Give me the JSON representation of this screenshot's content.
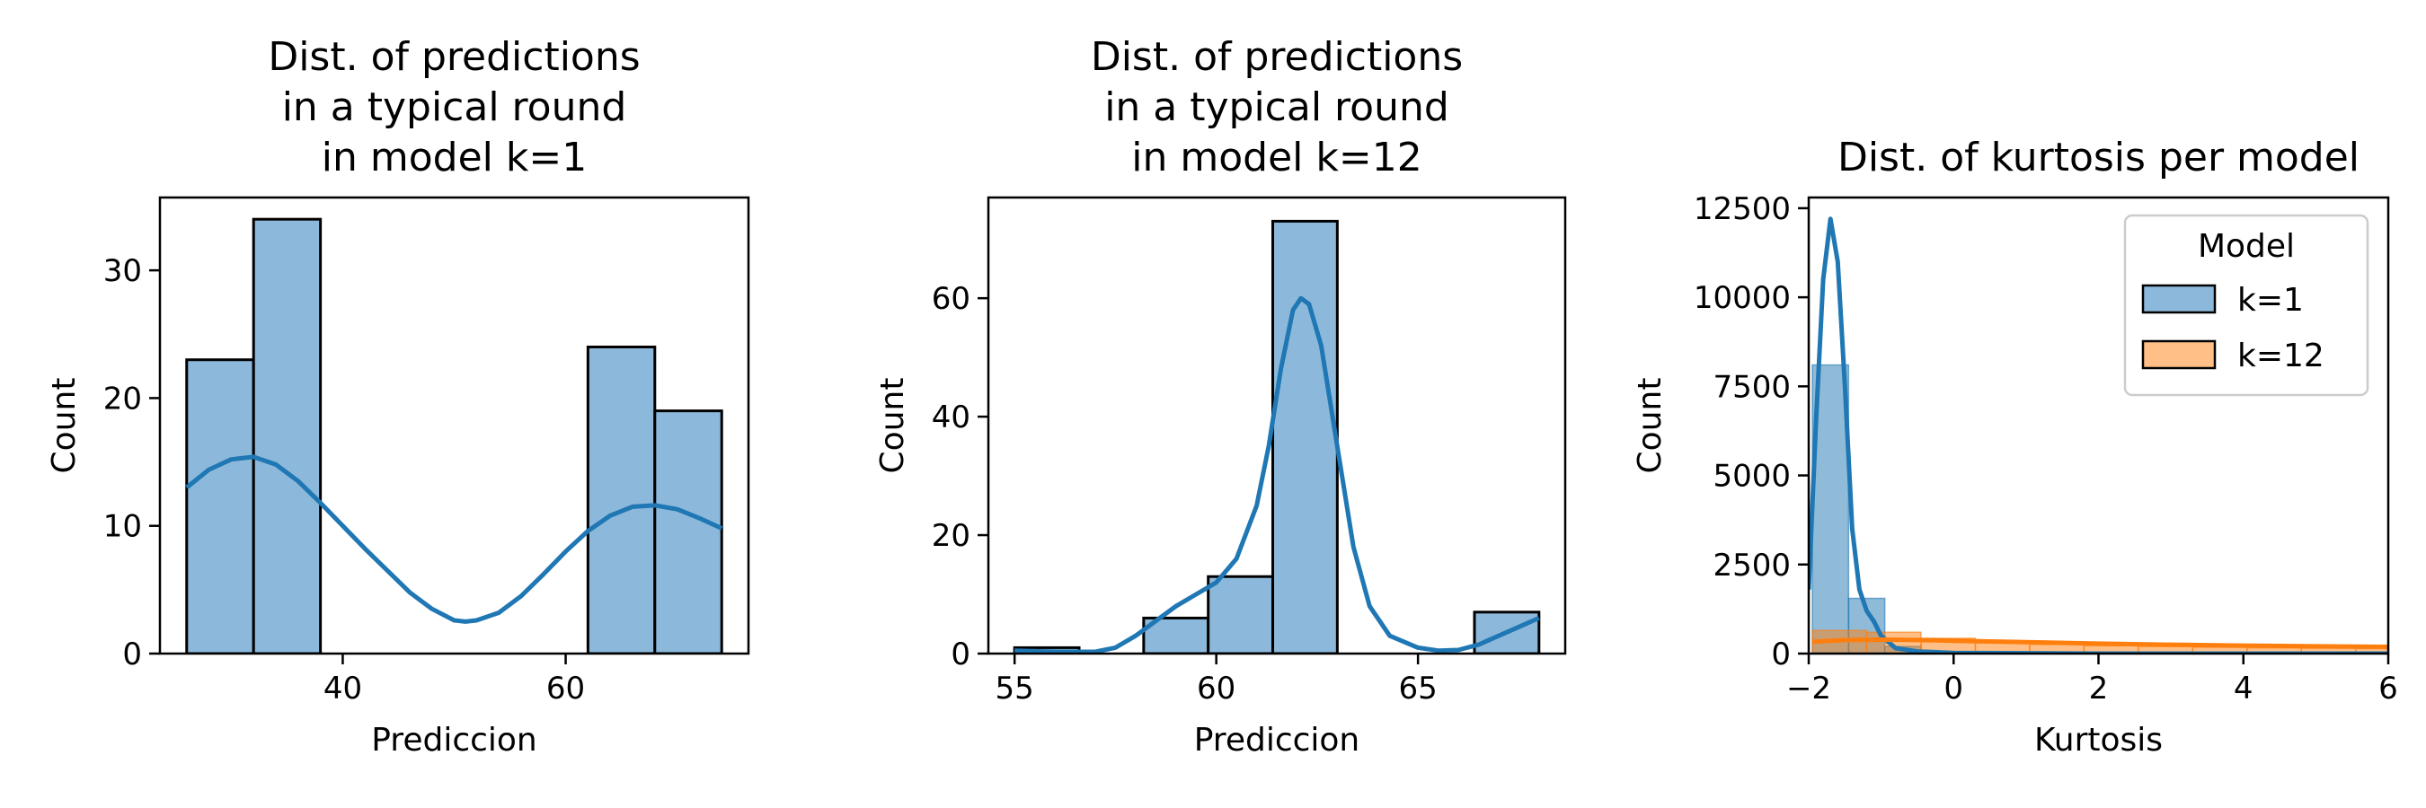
{
  "colors": {
    "blue": "#1f77b4",
    "blue_fill": "#8cb9db",
    "orange": "#ff7f0e",
    "orange_fill": "#ffbf86"
  },
  "chart_data": [
    {
      "type": "bar",
      "title": [
        "Dist. of predictions",
        "in a typical round",
        "in model k=1"
      ],
      "xlabel": "Prediccion",
      "ylabel": "Count",
      "xlim": [
        23.6,
        76.4
      ],
      "ylim": [
        0,
        35.7
      ],
      "xticks": [
        40,
        60
      ],
      "yticks": [
        0,
        10,
        20,
        30
      ],
      "bins": [
        {
          "x0": 26,
          "x1": 32,
          "count": 23
        },
        {
          "x0": 32,
          "x1": 38,
          "count": 34
        },
        {
          "x0": 62,
          "x1": 68,
          "count": 24
        },
        {
          "x0": 68,
          "x1": 74,
          "count": 19
        }
      ],
      "kde": [
        [
          26,
          13.0
        ],
        [
          28,
          14.4
        ],
        [
          30,
          15.2
        ],
        [
          32,
          15.4
        ],
        [
          34,
          14.8
        ],
        [
          36,
          13.5
        ],
        [
          38,
          11.8
        ],
        [
          42,
          8.2
        ],
        [
          46,
          4.8
        ],
        [
          48,
          3.5
        ],
        [
          50,
          2.6
        ],
        [
          51,
          2.5
        ],
        [
          52,
          2.6
        ],
        [
          54,
          3.2
        ],
        [
          56,
          4.5
        ],
        [
          58,
          6.2
        ],
        [
          60,
          8.0
        ],
        [
          62,
          9.6
        ],
        [
          64,
          10.8
        ],
        [
          66,
          11.5
        ],
        [
          68,
          11.6
        ],
        [
          70,
          11.3
        ],
        [
          72,
          10.6
        ],
        [
          74,
          9.8
        ]
      ]
    },
    {
      "type": "bar",
      "title": [
        "Dist. of predictions",
        "in a typical round",
        "in model k=12"
      ],
      "xlabel": "Prediccion",
      "ylabel": "Count",
      "xlim": [
        54.35,
        68.65
      ],
      "ylim": [
        0,
        77
      ],
      "xticks": [
        55,
        60,
        65
      ],
      "yticks": [
        0,
        20,
        40,
        60
      ],
      "bins": [
        {
          "x0": 55.0,
          "x1": 56.6,
          "count": 1
        },
        {
          "x0": 58.2,
          "x1": 59.8,
          "count": 6
        },
        {
          "x0": 59.8,
          "x1": 61.4,
          "count": 13
        },
        {
          "x0": 61.4,
          "x1": 63.0,
          "count": 73
        },
        {
          "x0": 66.4,
          "x1": 68.0,
          "count": 7
        }
      ],
      "kde": [
        [
          55.0,
          0.5
        ],
        [
          56.0,
          0.3
        ],
        [
          57.0,
          0.3
        ],
        [
          57.5,
          1.0
        ],
        [
          58.0,
          3.0
        ],
        [
          58.5,
          5.5
        ],
        [
          59.0,
          8.0
        ],
        [
          59.5,
          10.0
        ],
        [
          60.0,
          12.0
        ],
        [
          60.5,
          16.0
        ],
        [
          61.0,
          25.0
        ],
        [
          61.3,
          35.0
        ],
        [
          61.6,
          48.0
        ],
        [
          61.9,
          58.0
        ],
        [
          62.1,
          60.0
        ],
        [
          62.3,
          59.0
        ],
        [
          62.6,
          52.0
        ],
        [
          63.0,
          35.0
        ],
        [
          63.4,
          18.0
        ],
        [
          63.8,
          8.0
        ],
        [
          64.3,
          3.0
        ],
        [
          65.0,
          1.0
        ],
        [
          65.5,
          0.5
        ],
        [
          66.0,
          0.6
        ],
        [
          66.5,
          1.5
        ],
        [
          67.0,
          3.0
        ],
        [
          67.5,
          4.5
        ],
        [
          68.0,
          6.0
        ]
      ]
    },
    {
      "type": "bar",
      "title": [
        "Dist. of kurtosis per model"
      ],
      "xlabel": "Kurtosis",
      "ylabel": "Count",
      "xlim": [
        -2,
        6
      ],
      "ylim": [
        0,
        12800
      ],
      "xticks": [
        -2,
        0,
        2,
        4,
        6
      ],
      "xticklabels": [
        "−2",
        "0",
        "2",
        "4",
        "6"
      ],
      "yticks": [
        0,
        2500,
        5000,
        7500,
        10000,
        12500
      ],
      "legend": {
        "title": "Model",
        "entries": [
          "k=1",
          "k=12"
        ],
        "position": "top-right"
      },
      "series": [
        {
          "name": "k=1",
          "bins": [
            {
              "x0": -1.95,
              "x1": -1.45,
              "count": 8100
            },
            {
              "x0": -1.45,
              "x1": -0.95,
              "count": 1550
            },
            {
              "x0": -0.95,
              "x1": -0.45,
              "count": 200
            },
            {
              "x0": -0.45,
              "x1": 0.05,
              "count": 40
            }
          ],
          "kde": [
            [
              -2.0,
              1800
            ],
            [
              -1.9,
              6500
            ],
            [
              -1.8,
              10500
            ],
            [
              -1.7,
              12200
            ],
            [
              -1.6,
              11000
            ],
            [
              -1.5,
              7500
            ],
            [
              -1.4,
              3500
            ],
            [
              -1.3,
              1800
            ],
            [
              -1.2,
              1200
            ],
            [
              -1.1,
              900
            ],
            [
              -1.0,
              500
            ],
            [
              -0.8,
              150
            ],
            [
              -0.5,
              60
            ],
            [
              0.0,
              20
            ],
            [
              2.0,
              0
            ],
            [
              6.0,
              0
            ]
          ]
        },
        {
          "name": "k=12",
          "bins": [
            {
              "x0": -1.95,
              "x1": -1.2,
              "count": 650
            },
            {
              "x0": -1.2,
              "x1": -0.45,
              "count": 600
            },
            {
              "x0": -0.45,
              "x1": 0.3,
              "count": 430
            },
            {
              "x0": 0.3,
              "x1": 1.05,
              "count": 320
            },
            {
              "x0": 1.05,
              "x1": 1.8,
              "count": 260
            },
            {
              "x0": 1.8,
              "x1": 2.55,
              "count": 220
            },
            {
              "x0": 2.55,
              "x1": 3.3,
              "count": 200
            },
            {
              "x0": 3.3,
              "x1": 4.05,
              "count": 180
            },
            {
              "x0": 4.05,
              "x1": 4.8,
              "count": 160
            },
            {
              "x0": 4.8,
              "x1": 5.55,
              "count": 150
            },
            {
              "x0": 5.55,
              "x1": 6.3,
              "count": 140
            }
          ],
          "kde": [
            [
              -1.95,
              330
            ],
            [
              -1.5,
              380
            ],
            [
              -1.0,
              390
            ],
            [
              -0.5,
              380
            ],
            [
              0.0,
              360
            ],
            [
              1.0,
              320
            ],
            [
              2.0,
              280
            ],
            [
              3.0,
              250
            ],
            [
              4.0,
              225
            ],
            [
              5.0,
              205
            ],
            [
              6.0,
              190
            ]
          ]
        }
      ]
    }
  ]
}
